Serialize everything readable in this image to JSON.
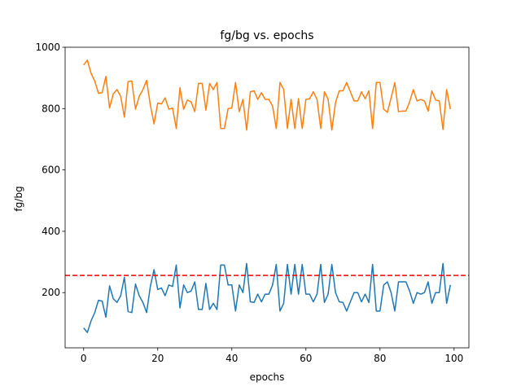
{
  "chart_data": {
    "type": "line",
    "title": "fg/bg vs. epochs",
    "xlabel": "epochs",
    "ylabel": "fg/bg",
    "xlim": [
      -5,
      104
    ],
    "ylim": [
      20,
      1000
    ],
    "xticks": [
      "0",
      "20",
      "40",
      "60",
      "80",
      "100"
    ],
    "yticks": [
      "200",
      "400",
      "600",
      "800",
      "1000"
    ],
    "grid": false,
    "x": [
      0,
      1,
      2,
      3,
      4,
      5,
      6,
      7,
      8,
      9,
      10,
      11,
      12,
      13,
      14,
      15,
      16,
      17,
      18,
      19,
      20,
      21,
      22,
      23,
      24,
      25,
      26,
      27,
      28,
      29,
      30,
      31,
      32,
      33,
      34,
      35,
      36,
      37,
      38,
      39,
      40,
      41,
      42,
      43,
      44,
      45,
      46,
      47,
      48,
      49,
      50,
      51,
      52,
      53,
      54,
      55,
      56,
      57,
      58,
      59,
      60,
      61,
      62,
      63,
      64,
      65,
      66,
      67,
      68,
      69,
      70,
      71,
      72,
      73,
      74,
      75,
      76,
      77,
      78,
      79,
      80,
      81,
      82,
      83,
      84,
      85,
      86,
      87,
      88,
      89,
      90,
      91,
      92,
      93,
      94,
      95,
      96,
      97,
      98,
      99
    ],
    "series": [
      {
        "color": "#ff7f0e",
        "values": [
          942,
          958,
          915,
          890,
          850,
          852,
          905,
          802,
          848,
          862,
          840,
          772,
          888,
          890,
          798,
          840,
          862,
          892,
          812,
          750,
          818,
          815,
          835,
          798,
          802,
          735,
          868,
          798,
          828,
          822,
          790,
          882,
          882,
          795,
          882,
          862,
          885,
          735,
          735,
          800,
          802,
          885,
          790,
          830,
          730,
          855,
          858,
          830,
          852,
          830,
          830,
          808,
          735,
          885,
          862,
          735,
          830,
          735,
          832,
          735,
          830,
          832,
          855,
          830,
          735,
          855,
          830,
          730,
          820,
          858,
          858,
          885,
          855,
          825,
          825,
          855,
          832,
          858,
          735,
          885,
          885,
          798,
          788,
          835,
          885,
          790,
          792,
          792,
          822,
          862,
          825,
          830,
          825,
          792,
          858,
          828,
          825,
          732,
          862,
          798
        ]
      },
      {
        "color": "#1f77b4",
        "values": [
          85,
          70,
          108,
          135,
          175,
          172,
          120,
          222,
          180,
          168,
          190,
          250,
          138,
          135,
          228,
          190,
          168,
          135,
          220,
          275,
          210,
          215,
          190,
          225,
          220,
          290,
          150,
          225,
          200,
          205,
          235,
          145,
          145,
          230,
          145,
          165,
          145,
          290,
          290,
          225,
          225,
          140,
          225,
          200,
          295,
          170,
          168,
          195,
          170,
          195,
          195,
          225,
          292,
          140,
          165,
          292,
          195,
          292,
          195,
          292,
          195,
          195,
          170,
          195,
          292,
          168,
          195,
          292,
          200,
          170,
          168,
          140,
          170,
          200,
          200,
          170,
          195,
          168,
          292,
          140,
          140,
          225,
          235,
          200,
          140,
          235,
          235,
          235,
          205,
          165,
          200,
          195,
          200,
          235,
          165,
          200,
          200,
          295,
          165,
          225
        ]
      }
    ],
    "reference_line": {
      "y": 256,
      "color": "#ff0000",
      "style": "dashed"
    }
  }
}
